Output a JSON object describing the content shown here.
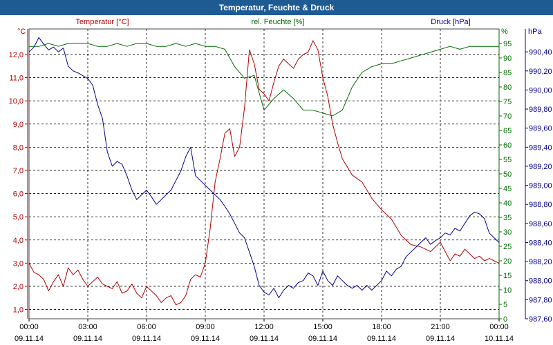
{
  "window": {
    "title": "Temperatur, Feuchte & Druck"
  },
  "colors": {
    "temperature": "#b00000",
    "humidity": "#006a00",
    "pressure": "#00008b",
    "grid": "#000000",
    "titlebar": "#1f5b93"
  },
  "chart_data": {
    "type": "line",
    "title": "Temperatur, Feuchte & Druck",
    "grid": true,
    "x_ticks": [
      {
        "time": "00:00",
        "date": "09.11.14"
      },
      {
        "time": "03:00",
        "date": "09.11.14"
      },
      {
        "time": "06:00",
        "date": "09.11.14"
      },
      {
        "time": "09:00",
        "date": "09.11.14"
      },
      {
        "time": "12:00",
        "date": "09.11.14"
      },
      {
        "time": "15:00",
        "date": "09.11.14"
      },
      {
        "time": "18:00",
        "date": "09.11.14"
      },
      {
        "time": "21:00",
        "date": "09.11.14"
      },
      {
        "time": "00:00",
        "date": "10.11.14"
      }
    ],
    "xlim_hours": [
      0,
      24
    ],
    "axes": {
      "temperature": {
        "label": "Temperatur [°C]",
        "unit": "°C",
        "ylim": [
          0.6,
          13.1
        ],
        "ticks": [
          "1,0",
          "2,0",
          "3,0",
          "4,0",
          "5,0",
          "6,0",
          "7,0",
          "8,0",
          "9,0",
          "10,0",
          "11,0",
          "12,0"
        ]
      },
      "humidity": {
        "label": "rel. Feuchte [%]",
        "unit": "%",
        "ylim": [
          0,
          100
        ],
        "ticks": [
          "0",
          "5",
          "10",
          "15",
          "20",
          "25",
          "30",
          "35",
          "40",
          "45",
          "50",
          "55",
          "60",
          "65",
          "70",
          "75",
          "80",
          "85",
          "90",
          "95"
        ]
      },
      "pressure": {
        "label": "Druck [hPa]",
        "unit": "hPa",
        "ylim": [
          987.6,
          990.64
        ],
        "ticks": [
          "987,60",
          "987,80",
          "988,00",
          "988,20",
          "988,40",
          "988,60",
          "988,80",
          "989,00",
          "989,20",
          "989,40",
          "989,60",
          "989,80",
          "990,00",
          "990,20",
          "990,40"
        ]
      }
    },
    "series": [
      {
        "name": "Temperatur [°C]",
        "axis": "temperature",
        "x": [
          0,
          0.25,
          0.5,
          0.75,
          1,
          1.25,
          1.5,
          1.75,
          2,
          2.25,
          2.5,
          2.75,
          3,
          3.25,
          3.5,
          3.75,
          4,
          4.25,
          4.5,
          4.75,
          5,
          5.25,
          5.5,
          5.75,
          6,
          6.25,
          6.5,
          6.75,
          7,
          7.25,
          7.5,
          7.75,
          8,
          8.25,
          8.5,
          8.75,
          9,
          9.25,
          9.5,
          9.75,
          10,
          10.25,
          10.5,
          10.75,
          11,
          11.25,
          11.5,
          11.75,
          12,
          12.25,
          12.5,
          12.75,
          13,
          13.25,
          13.5,
          13.75,
          14,
          14.25,
          14.5,
          14.75,
          15,
          15.25,
          15.5,
          15.75,
          16,
          16.5,
          17,
          17.5,
          18,
          18.5,
          19,
          19.5,
          20,
          20.5,
          21,
          21.25,
          21.5,
          21.75,
          22,
          22.25,
          22.5,
          22.75,
          23,
          23.25,
          23.5,
          23.75,
          24
        ],
        "y": [
          3.0,
          2.6,
          2.5,
          2.3,
          1.8,
          2.2,
          2.5,
          2.0,
          2.8,
          2.5,
          2.7,
          2.3,
          2.0,
          2.2,
          2.4,
          2.1,
          2.0,
          1.9,
          2.2,
          1.7,
          1.8,
          2.1,
          1.7,
          1.5,
          2.0,
          1.8,
          1.6,
          1.3,
          1.5,
          1.6,
          1.2,
          1.3,
          1.6,
          2.3,
          2.5,
          2.4,
          3.0,
          4.5,
          6.5,
          7.5,
          8.6,
          8.8,
          7.6,
          8.0,
          9.7,
          12.2,
          11.6,
          10.5,
          10.3,
          10.0,
          10.8,
          11.5,
          11.8,
          11.6,
          11.4,
          11.8,
          12.0,
          12.1,
          12.6,
          12.2,
          11.0,
          10.2,
          9.0,
          8.2,
          7.5,
          6.8,
          6.5,
          5.8,
          5.3,
          4.9,
          4.2,
          3.8,
          3.7,
          3.5,
          3.9,
          3.5,
          3.1,
          3.4,
          3.3,
          3.6,
          3.4,
          3.2,
          3.3,
          3.1,
          3.2,
          3.1,
          3.0
        ]
      },
      {
        "name": "rel. Feuchte [%]",
        "axis": "humidity",
        "x": [
          0,
          0.5,
          1,
          1.5,
          2,
          2.5,
          3,
          3.5,
          4,
          4.5,
          5,
          5.5,
          6,
          6.5,
          7,
          7.5,
          8,
          8.5,
          9,
          9.5,
          10,
          10.5,
          11,
          11.5,
          12,
          12.5,
          13,
          13.5,
          14,
          14.5,
          15,
          15.5,
          16,
          16.5,
          17,
          17.5,
          18,
          18.5,
          19,
          19.5,
          20,
          20.5,
          21,
          21.5,
          22,
          22.5,
          23,
          23.5,
          24
        ],
        "y": [
          94,
          94,
          95,
          94,
          95,
          95,
          95,
          94,
          94,
          95,
          94,
          95,
          95,
          94,
          94,
          95,
          94,
          95,
          94,
          94,
          93,
          87,
          83,
          84,
          72,
          76,
          79,
          76,
          72,
          72,
          71,
          70,
          72,
          80,
          85,
          87,
          88,
          88,
          89,
          90,
          91,
          92,
          93,
          94,
          93,
          94,
          94,
          94,
          94
        ]
      },
      {
        "name": "Druck [hPa]",
        "axis": "pressure",
        "x": [
          0,
          0.25,
          0.5,
          0.75,
          1,
          1.25,
          1.5,
          1.75,
          2,
          2.25,
          2.5,
          2.75,
          3,
          3.25,
          3.5,
          3.75,
          4,
          4.25,
          4.5,
          4.75,
          5,
          5.25,
          5.5,
          5.75,
          6,
          6.25,
          6.5,
          6.75,
          7,
          7.25,
          7.5,
          7.75,
          8,
          8.25,
          8.5,
          8.75,
          9,
          9.25,
          9.5,
          9.75,
          10,
          10.25,
          10.5,
          10.75,
          11,
          11.25,
          11.5,
          11.75,
          12,
          12.25,
          12.5,
          12.75,
          13,
          13.25,
          13.5,
          13.75,
          14,
          14.25,
          14.5,
          14.75,
          15,
          15.25,
          15.5,
          15.75,
          16,
          16.25,
          16.5,
          16.75,
          17,
          17.25,
          17.5,
          17.75,
          18,
          18.25,
          18.5,
          18.75,
          19,
          19.25,
          19.5,
          19.75,
          20,
          20.25,
          20.5,
          20.75,
          21,
          21.25,
          21.5,
          21.75,
          22,
          22.25,
          22.5,
          22.75,
          23,
          23.25,
          23.5,
          23.75,
          24
        ],
        "y": [
          990.4,
          990.45,
          990.55,
          990.48,
          990.42,
          990.45,
          990.4,
          990.44,
          990.25,
          990.2,
          990.18,
          990.15,
          990.12,
          990.05,
          989.85,
          989.7,
          989.35,
          989.2,
          989.25,
          989.22,
          989.1,
          988.95,
          988.85,
          988.9,
          988.95,
          988.88,
          988.8,
          988.85,
          988.9,
          988.95,
          989.05,
          989.15,
          989.3,
          989.4,
          989.1,
          989.05,
          989.0,
          988.95,
          988.9,
          988.85,
          988.78,
          988.7,
          988.6,
          988.5,
          988.45,
          988.3,
          988.15,
          987.95,
          987.88,
          987.85,
          987.92,
          987.82,
          987.9,
          987.95,
          987.92,
          987.98,
          988.0,
          988.08,
          988.05,
          987.95,
          988.1,
          988.0,
          987.95,
          988.05,
          988.0,
          987.95,
          987.92,
          987.95,
          987.9,
          987.95,
          987.9,
          987.95,
          988.0,
          988.1,
          988.05,
          988.12,
          988.15,
          988.25,
          988.3,
          988.35,
          988.4,
          988.45,
          988.38,
          988.42,
          988.45,
          988.5,
          988.48,
          988.55,
          988.52,
          988.6,
          988.68,
          988.72,
          988.7,
          988.65,
          988.5,
          988.45,
          988.4
        ]
      }
    ]
  }
}
